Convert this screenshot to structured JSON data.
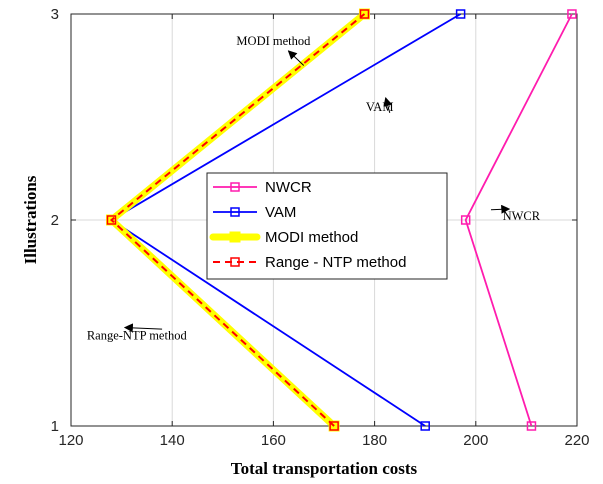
{
  "chart_data": {
    "type": "line",
    "title": "",
    "xlabel": "Total transportation costs",
    "ylabel": "Illustrations",
    "xlim": [
      120,
      220
    ],
    "ylim": [
      1,
      3
    ],
    "xticks": [
      "120",
      "140",
      "160",
      "180",
      "200",
      "220"
    ],
    "yticks": [
      "1",
      "2",
      "3"
    ],
    "grid": true,
    "legend_position": "center-right",
    "series": [
      {
        "name": "NWCR",
        "color": "#ff1cae",
        "style": "solid",
        "marker": "square",
        "points": [
          [
            211,
            1
          ],
          [
            198,
            2
          ],
          [
            219,
            3
          ]
        ]
      },
      {
        "name": "VAM",
        "color": "#0000ff",
        "style": "solid",
        "marker": "square",
        "points": [
          [
            190,
            1
          ],
          [
            128,
            2
          ],
          [
            197,
            3
          ]
        ]
      },
      {
        "name": "MODI method",
        "color": "#ffff00",
        "style": "thick",
        "marker": "square",
        "points": [
          [
            172,
            1
          ],
          [
            128,
            2
          ],
          [
            178,
            3
          ]
        ]
      },
      {
        "name": "Range - NTP method",
        "color": "#ff0000",
        "style": "dashed",
        "marker": "square",
        "points": [
          [
            172,
            1
          ],
          [
            128,
            2
          ],
          [
            178,
            3
          ]
        ]
      }
    ],
    "annotations": [
      {
        "text": "MODI method",
        "at": [
          166,
          2.75
        ],
        "label": [
          160,
          2.85
        ]
      },
      {
        "text": "VAM",
        "at": [
          183,
          2.52
        ],
        "label": [
          181,
          2.53
        ]
      },
      {
        "text": "NWCR",
        "at": [
          203,
          2.05
        ],
        "label": [
          209,
          2.0
        ]
      },
      {
        "text": "Range-NTP method",
        "at": [
          138,
          1.47
        ],
        "label": [
          133,
          1.42
        ]
      }
    ]
  }
}
